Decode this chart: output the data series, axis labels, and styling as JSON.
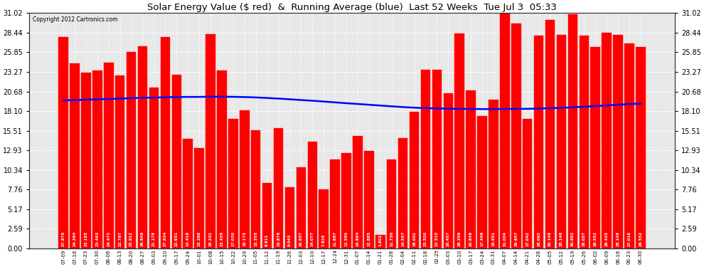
{
  "title": "Solar Energy Value ($ red)  &  Running Average (blue)  Last 52 Weeks  Tue Jul 3  05:33",
  "copyright": "Copyright 2012 Cartronics.com",
  "bar_color": "#ff0000",
  "avg_line_color": "#0000ff",
  "background_color": "#ffffff",
  "plot_bg_color": "#e8e8e8",
  "ylim": [
    0.0,
    31.02
  ],
  "yticks": [
    0.0,
    2.59,
    5.17,
    7.76,
    10.34,
    12.93,
    15.51,
    18.1,
    20.68,
    23.27,
    25.85,
    28.44,
    31.02
  ],
  "categories": [
    "07-09",
    "07-16",
    "07-23",
    "07-30",
    "08-06",
    "08-13",
    "08-20",
    "08-27",
    "09-03",
    "09-10",
    "09-17",
    "09-24",
    "10-01",
    "10-08",
    "10-15",
    "10-22",
    "10-29",
    "11-05",
    "11-12",
    "11-19",
    "11-26",
    "12-03",
    "12-10",
    "12-17",
    "12-24",
    "12-31",
    "01-07",
    "01-14",
    "01-21",
    "01-28",
    "02-04",
    "02-11",
    "02-18",
    "02-25",
    "03-03",
    "03-10",
    "03-17",
    "03-24",
    "03-31",
    "04-07",
    "04-14",
    "04-21",
    "04-28",
    "05-05",
    "05-12",
    "05-19",
    "05-26",
    "06-02",
    "06-09",
    "06-16",
    "06-23",
    "06-30"
  ],
  "values": [
    27.876,
    24.364,
    23.185,
    23.493,
    24.472,
    22.797,
    25.912,
    26.649,
    21.178,
    27.834,
    22.931,
    14.418,
    13.268,
    28.242,
    23.435,
    17.03,
    18.175,
    15.555,
    8.611,
    15.878,
    8.043,
    10.657,
    14.077,
    7.826,
    11.687,
    12.56,
    14.864,
    12.885,
    1.802,
    11.73,
    14.557,
    18.002,
    23.52,
    23.51,
    20.457,
    28.356,
    20.846,
    17.446,
    19.651,
    31.004,
    29.657,
    17.042,
    28.062,
    30.148,
    28.148,
    30.882,
    28.057,
    26.552,
    28.435,
    28.148,
    27.018,
    26.552
  ],
  "running_avg": [
    19.5,
    19.55,
    19.6,
    19.65,
    19.7,
    19.75,
    19.8,
    19.85,
    19.88,
    19.92,
    19.95,
    19.97,
    19.97,
    20.0,
    20.0,
    19.98,
    19.95,
    19.9,
    19.83,
    19.75,
    19.66,
    19.56,
    19.47,
    19.36,
    19.25,
    19.14,
    19.04,
    18.94,
    18.83,
    18.73,
    18.63,
    18.55,
    18.5,
    18.45,
    18.42,
    18.4,
    18.38,
    18.37,
    18.37,
    18.38,
    18.4,
    18.4,
    18.44,
    18.48,
    18.53,
    18.6,
    18.68,
    18.76,
    18.85,
    18.94,
    19.02,
    19.1
  ]
}
